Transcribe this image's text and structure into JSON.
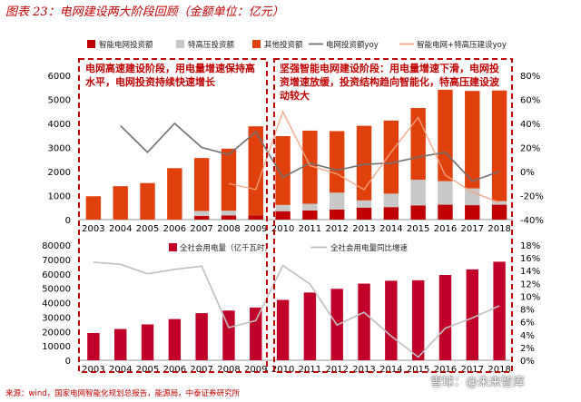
{
  "title": "图表 23：电网建设两大阶段回顾（金额单位：亿元）",
  "source": "来源：wind，国家电网智能化规划总报告，能源局，中泰证券研究所",
  "watermark": "雪球：@未来智库",
  "colors": {
    "smart": "#c00000",
    "uhv": "#c8c8c8",
    "other": "#e0400c",
    "grid_yoy": "#707070",
    "smart_uhv_yoy": "#f4a582",
    "consumption": "#c0002a",
    "consumption_yoy": "#bfbfbf",
    "annotation": "#c00000",
    "title": "#c00000"
  },
  "annotations": {
    "phase1": "电网高速建设阶段，用电量增速保持高水平，电网投资持续快速增长",
    "phase2": "坚强智能电网建设阶段：用电量增速下滑，电网投资增速放缓，投资结构趋向智能化，特高压建设波动较大"
  },
  "chart_data": [
    {
      "type": "bar",
      "stacked": true,
      "categories": [
        "2003",
        "2004",
        "2005",
        "2006",
        "2007",
        "2008",
        "2009",
        "2010",
        "2011",
        "2012",
        "2013",
        "2014",
        "2015",
        "2016",
        "2017",
        "2018"
      ],
      "series": [
        {
          "name": "智能电网投资额",
          "values": [
            0,
            0,
            0,
            0,
            150,
            170,
            180,
            350,
            380,
            420,
            500,
            520,
            590,
            620,
            600,
            620
          ]
        },
        {
          "name": "特高压投资额",
          "values": [
            0,
            0,
            0,
            0,
            210,
            200,
            0,
            260,
            280,
            700,
            300,
            560,
            1070,
            980,
            700,
            150
          ]
        },
        {
          "name": "其他投资额",
          "values": [
            970,
            1390,
            1520,
            2140,
            2200,
            2580,
            3700,
            2860,
            3040,
            2560,
            3100,
            3040,
            2980,
            3800,
            4050,
            4600
          ]
        }
      ],
      "lines": [
        {
          "name": "电网投资额yoy",
          "axis": "right",
          "values": [
            null,
            38,
            16,
            40,
            20,
            14,
            33,
            -5,
            7,
            1,
            6,
            7,
            12,
            16,
            -8,
            0
          ]
        },
        {
          "name": "智能电网+特高压建设yoy",
          "axis": "right",
          "values": [
            null,
            null,
            null,
            null,
            null,
            -10,
            -15,
            50,
            5,
            -2,
            -15,
            16,
            45,
            -3,
            -17,
            -26
          ]
        }
      ],
      "ylim": [
        0,
        6000
      ],
      "yticks": [
        0,
        1000,
        2000,
        3000,
        4000,
        5000,
        6000
      ],
      "y2lim": [
        -40,
        80
      ],
      "y2ticks": [
        "-40%",
        "-20%",
        "0%",
        "20%",
        "40%",
        "60%",
        "80%"
      ],
      "legend_position": "top"
    },
    {
      "type": "bar",
      "categories": [
        "2003",
        "2004",
        "2005",
        "2006",
        "2007",
        "2008",
        "2009",
        "2010",
        "2011",
        "2012",
        "2013",
        "2014",
        "2015",
        "2016",
        "2017",
        "2018"
      ],
      "series": [
        {
          "name": "全社会用电量（亿千瓦时）",
          "values": [
            18900,
            21700,
            24900,
            28600,
            32700,
            34500,
            36600,
            41900,
            47000,
            49600,
            53200,
            55200,
            55500,
            59200,
            63100,
            68400
          ]
        }
      ],
      "lines": [
        {
          "name": "全社会用电量同比增速",
          "axis": "right",
          "values": [
            15.3,
            15.0,
            13.5,
            14.2,
            14.7,
            5.1,
            6.2,
            14.8,
            11.9,
            5.5,
            7.5,
            3.8,
            0.5,
            5.0,
            6.6,
            8.5
          ]
        }
      ],
      "ylim": [
        0,
        80000
      ],
      "yticks": [
        0,
        10000,
        20000,
        30000,
        40000,
        50000,
        60000,
        70000,
        80000
      ],
      "y2lim": [
        0,
        18
      ],
      "y2ticks": [
        "0%",
        "2%",
        "4%",
        "6%",
        "8%",
        "10%",
        "12%",
        "14%",
        "16%",
        "18%"
      ],
      "legend_position": "top"
    }
  ]
}
